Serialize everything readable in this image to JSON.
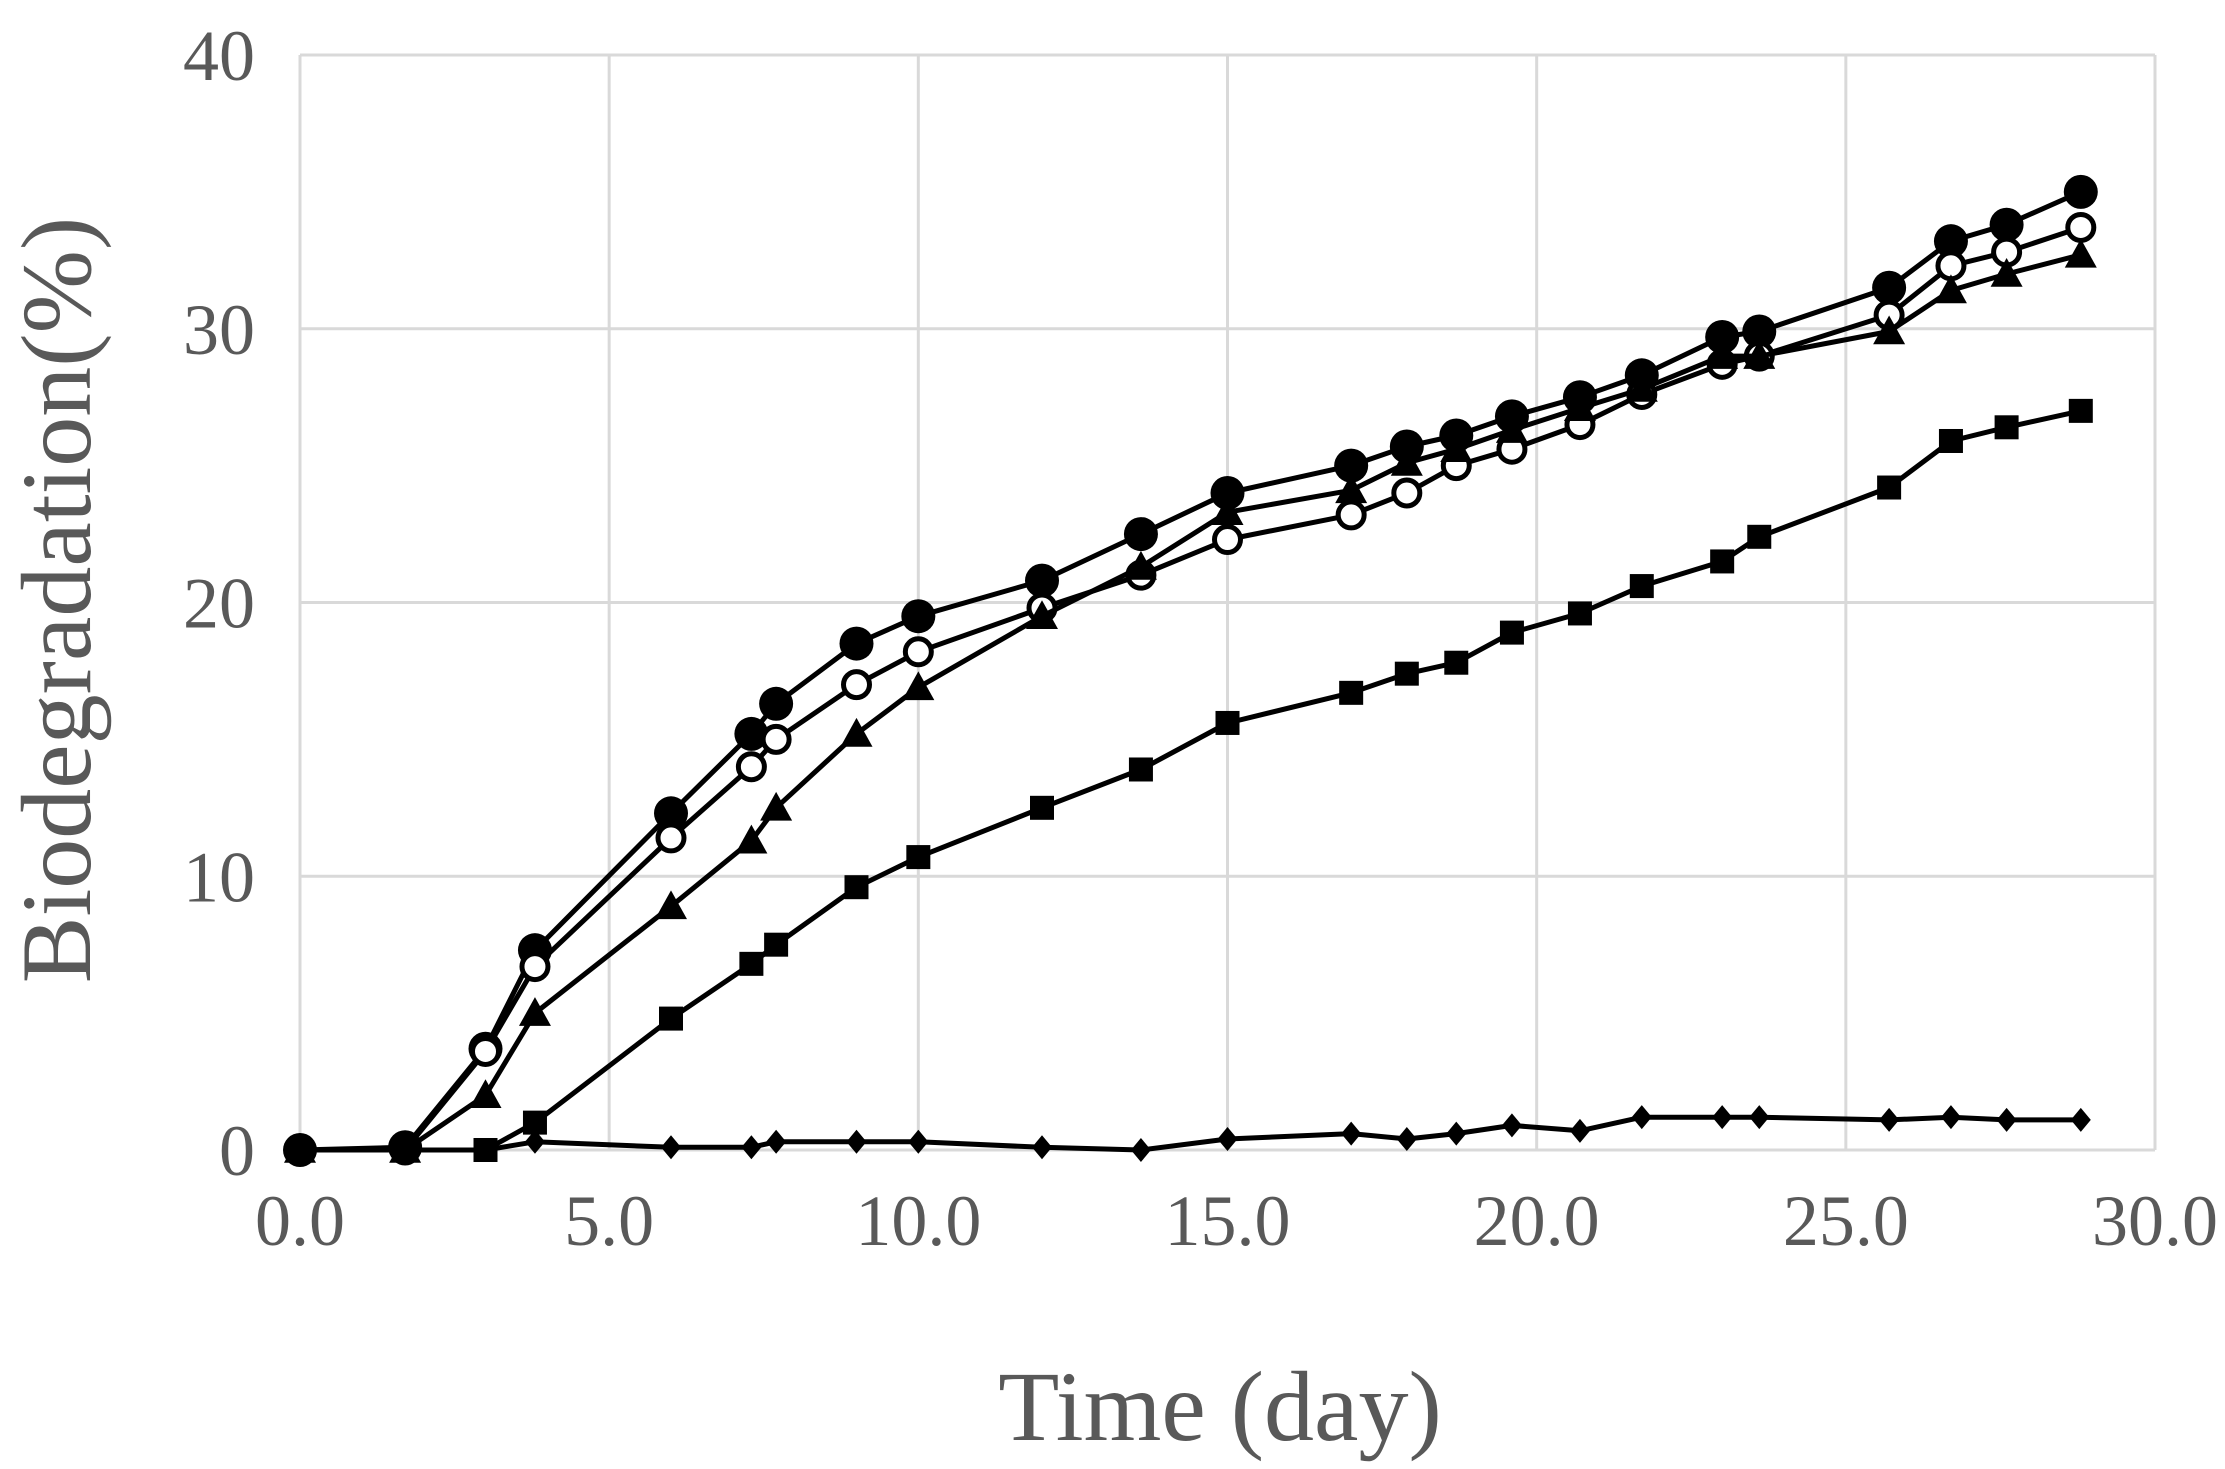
{
  "chart_data": {
    "type": "line",
    "title": "",
    "xlabel": "Time (day)",
    "ylabel": "Biodegradation(%)",
    "xlim": [
      0,
      30
    ],
    "ylim": [
      0,
      40
    ],
    "xticks": [
      0,
      5,
      10,
      15,
      20,
      25,
      30
    ],
    "yticks": [
      0,
      10,
      20,
      30,
      40
    ],
    "xtick_labels": [
      "0.0",
      "5.0",
      "10.0",
      "15.0",
      "20.0",
      "25.0",
      "30.0"
    ],
    "ytick_labels": [
      "0",
      "10",
      "20",
      "30",
      "40"
    ],
    "grid": true,
    "series": [
      {
        "name": "filled-circle",
        "marker": "circle-filled",
        "x": [
          0.0,
          1.7,
          3.0,
          3.8,
          6.0,
          7.3,
          7.7,
          9.0,
          10.0,
          12.0,
          13.6,
          15.0,
          17.0,
          17.9,
          18.7,
          19.6,
          20.7,
          21.7,
          23.0,
          23.6,
          25.7,
          26.7,
          27.6,
          28.8
        ],
        "y": [
          0.0,
          0.1,
          3.7,
          7.3,
          12.3,
          15.2,
          16.3,
          18.5,
          19.5,
          20.8,
          22.5,
          24.0,
          25.0,
          25.7,
          26.1,
          26.8,
          27.5,
          28.3,
          29.7,
          29.9,
          31.5,
          33.2,
          33.8,
          35.0
        ]
      },
      {
        "name": "open-circle",
        "marker": "circle-open",
        "x": [
          0.0,
          1.7,
          3.0,
          3.8,
          6.0,
          7.3,
          7.7,
          9.0,
          10.0,
          12.0,
          13.6,
          15.0,
          17.0,
          17.9,
          18.7,
          19.6,
          20.7,
          21.7,
          23.0,
          23.6,
          25.7,
          26.7,
          27.6,
          28.8
        ],
        "y": [
          0.0,
          0.0,
          3.6,
          6.7,
          11.4,
          14.0,
          15.0,
          17.0,
          18.2,
          19.8,
          21.0,
          22.3,
          23.2,
          24.0,
          25.0,
          25.6,
          26.5,
          27.6,
          28.7,
          29.0,
          30.5,
          32.3,
          32.8,
          33.7
        ]
      },
      {
        "name": "filled-triangle",
        "marker": "triangle",
        "x": [
          0.0,
          1.7,
          3.0,
          3.8,
          6.0,
          7.3,
          7.7,
          9.0,
          10.0,
          12.0,
          13.6,
          15.0,
          17.0,
          17.9,
          18.7,
          19.6,
          20.7,
          21.7,
          23.0,
          23.6,
          25.7,
          26.7,
          27.6,
          28.8
        ],
        "y": [
          0.0,
          0.0,
          2.0,
          5.0,
          8.9,
          11.3,
          12.5,
          15.2,
          16.9,
          19.5,
          21.3,
          23.3,
          24.1,
          25.1,
          25.6,
          26.3,
          27.1,
          27.8,
          29.0,
          29.0,
          29.9,
          31.4,
          32.0,
          32.7
        ]
      },
      {
        "name": "filled-square",
        "marker": "square",
        "x": [
          0.0,
          1.7,
          3.0,
          3.8,
          6.0,
          7.3,
          7.7,
          9.0,
          10.0,
          12.0,
          13.6,
          15.0,
          17.0,
          17.9,
          18.7,
          19.6,
          20.7,
          21.7,
          23.0,
          23.6,
          25.7,
          26.7,
          27.6,
          28.8
        ],
        "y": [
          0.0,
          0.0,
          0.0,
          1.0,
          4.8,
          6.8,
          7.5,
          9.6,
          10.7,
          12.5,
          13.9,
          15.6,
          16.7,
          17.4,
          17.8,
          18.9,
          19.6,
          20.6,
          21.5,
          22.4,
          24.2,
          25.9,
          26.4,
          27.0
        ]
      },
      {
        "name": "filled-diamond",
        "marker": "diamond",
        "x": [
          0.0,
          1.7,
          3.0,
          3.8,
          6.0,
          7.3,
          7.7,
          9.0,
          10.0,
          12.0,
          13.6,
          15.0,
          17.0,
          17.9,
          18.7,
          19.6,
          20.7,
          21.7,
          23.0,
          23.6,
          25.7,
          26.7,
          27.6,
          28.8
        ],
        "y": [
          0.0,
          0.0,
          0.0,
          0.3,
          0.1,
          0.1,
          0.3,
          0.3,
          0.3,
          0.1,
          0.0,
          0.4,
          0.6,
          0.4,
          0.6,
          0.9,
          0.7,
          1.2,
          1.2,
          1.2,
          1.1,
          1.2,
          1.1,
          1.1
        ]
      }
    ]
  }
}
